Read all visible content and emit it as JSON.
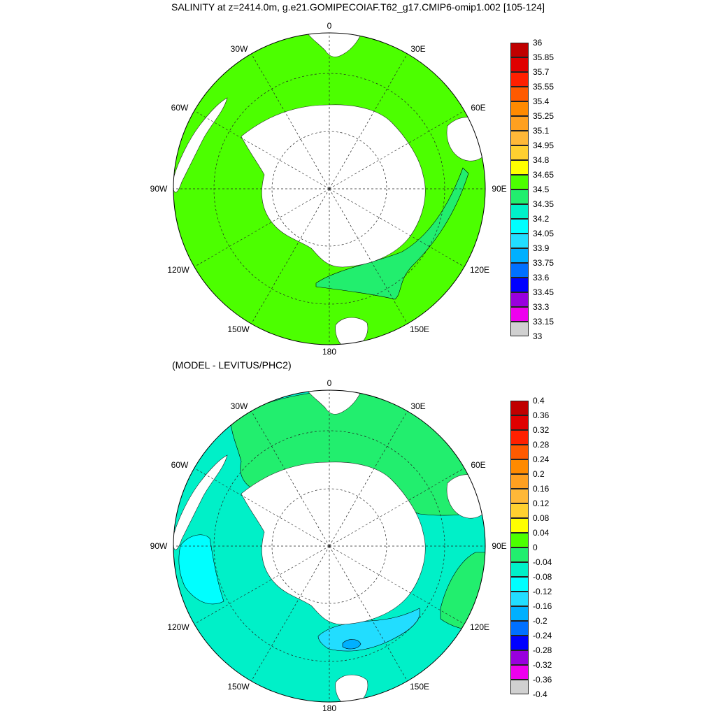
{
  "title": "SALINITY at z=2414.0m, g.e21.GOMIPECOIAF.T62_g17.CMIP6-omip1.002 [105-124]",
  "subtitle": "(MODEL - LEVITUS/PHC2)",
  "longitude_labels": [
    "0",
    "30E",
    "60E",
    "90E",
    "120E",
    "150E",
    "180",
    "150W",
    "120W",
    "90W",
    "60W",
    "30W"
  ],
  "colors": {
    "land": "#ffffff",
    "field_top": "#4cff00",
    "band_top": "#22ee6e",
    "field_bottom_main": "#00f0c8",
    "field_bottom_green": "#22ee6e",
    "field_bottom_cyan": "#00ffff",
    "field_bottom_blue": "#22ddff"
  },
  "colorbar_top": {
    "labels": [
      "36",
      "35.85",
      "35.7",
      "35.55",
      "35.4",
      "35.25",
      "35.1",
      "34.95",
      "34.8",
      "34.65",
      "34.5",
      "34.35",
      "34.2",
      "34.05",
      "33.9",
      "33.75",
      "33.6",
      "33.45",
      "33.3",
      "33.15",
      "33"
    ],
    "colors": [
      "#c00000",
      "#e00000",
      "#ff2000",
      "#ff5a00",
      "#ff8a00",
      "#ffa020",
      "#ffb838",
      "#ffd030",
      "#ffff00",
      "#4cff00",
      "#22ee6e",
      "#00f0c8",
      "#00ffff",
      "#22ddff",
      "#00b0ff",
      "#0070ff",
      "#0000ff",
      "#9900dd",
      "#ee00ee",
      "#d0d0d0",
      "#707070"
    ]
  },
  "colorbar_bottom": {
    "labels": [
      "0.4",
      "0.36",
      "0.32",
      "0.28",
      "0.24",
      "0.2",
      "0.16",
      "0.12",
      "0.08",
      "0.04",
      "0",
      "-0.04",
      "-0.08",
      "-0.12",
      "-0.16",
      "-0.2",
      "-0.24",
      "-0.28",
      "-0.32",
      "-0.36",
      "-0.4"
    ],
    "colors": [
      "#c00000",
      "#e00000",
      "#ff2000",
      "#ff5a00",
      "#ff8a00",
      "#ffa020",
      "#ffb838",
      "#ffd030",
      "#ffff00",
      "#4cff00",
      "#22ee6e",
      "#00f0c8",
      "#00ffff",
      "#22ddff",
      "#00b0ff",
      "#0070ff",
      "#0000ff",
      "#9900dd",
      "#ee00ee",
      "#d0d0d0",
      "#707070"
    ]
  }
}
